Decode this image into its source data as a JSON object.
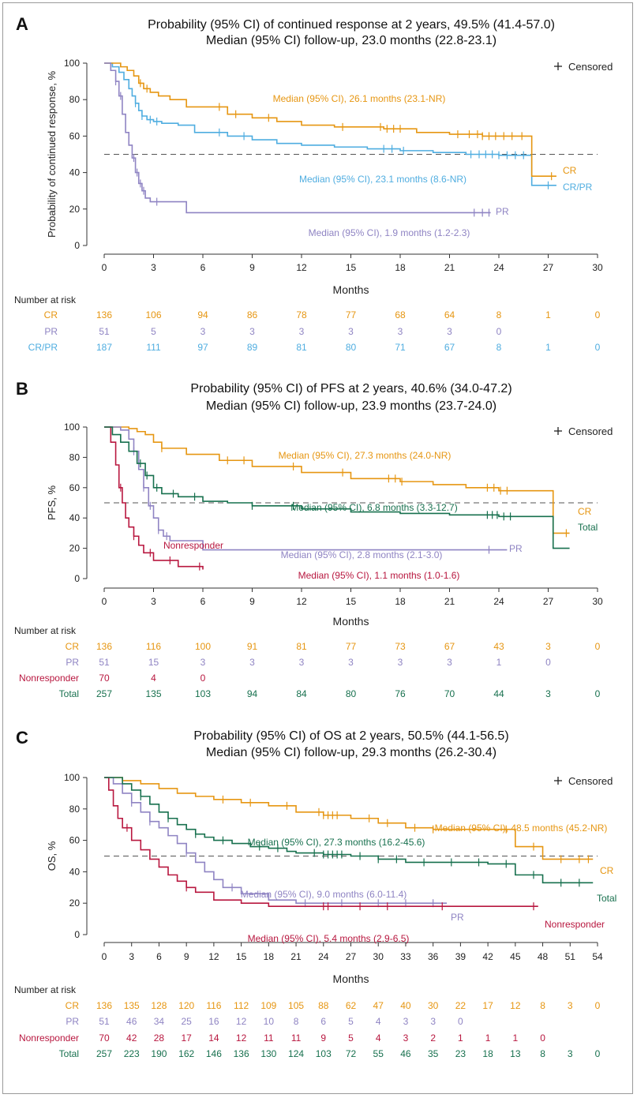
{
  "colors": {
    "cr": "#E69612",
    "pr": "#8F84C3",
    "crpr": "#4FADE0",
    "nonresponder": "#B8173F",
    "total": "#17704E",
    "axis": "#333333",
    "dash": "#555555"
  },
  "common": {
    "censored_label": "Censored",
    "nar_header": "Number at risk",
    "xlabel": "Months"
  },
  "chart_data": [
    {
      "panel": "A",
      "type": "line",
      "title_lines": [
        "Probability (95% CI) of continued response at 2 years, 49.5% (41.4-57.0)",
        "Median (95% CI) follow-up, 23.0 months (22.8-23.1)"
      ],
      "ylabel": "Probability of continued response, %",
      "xlim": [
        0,
        30
      ],
      "ylim": [
        0,
        100
      ],
      "xticks": [
        0,
        3,
        6,
        9,
        12,
        15,
        18,
        21,
        24,
        27,
        30
      ],
      "yticks": [
        0,
        20,
        40,
        60,
        80,
        100
      ],
      "median_line": 50,
      "series": [
        {
          "key": "crpr",
          "name": "CR/PR",
          "x": [
            0,
            0.5,
            0.9,
            1.2,
            1.5,
            1.7,
            1.9,
            2.1,
            2.3,
            2.6,
            3.0,
            3.5,
            4.5,
            5.5,
            7.5,
            9.0,
            10.5,
            12.0,
            14.0,
            16.0,
            18.0,
            20.0,
            22.0,
            24.0,
            26.0,
            27.5
          ],
          "y": [
            100,
            98,
            95,
            91,
            86,
            82,
            78,
            74,
            71,
            69,
            68,
            67,
            66,
            62,
            60,
            58,
            56,
            55,
            54,
            53,
            52,
            51,
            50,
            49.5,
            33,
            33
          ],
          "censor_x": [
            1.9,
            2.3,
            2.8,
            3.2,
            7.0,
            8.5,
            17.0,
            17.5,
            18.2,
            22.3,
            22.8,
            23.2,
            23.6,
            24.0,
            24.5,
            25.0,
            25.5,
            27.0
          ],
          "label": "CR/PR",
          "median_label": "Median (95% CI), 23.1 months (8.6-NR)"
        },
        {
          "key": "cr",
          "name": "CR",
          "x": [
            0,
            1.0,
            1.4,
            1.8,
            2.1,
            2.4,
            2.8,
            3.3,
            4.0,
            5.0,
            7.5,
            9.0,
            10.5,
            12.0,
            14.0,
            17.0,
            19.0,
            21.0,
            23.0,
            26.0,
            27.5
          ],
          "y": [
            100,
            98,
            96,
            93,
            89,
            86,
            84,
            82,
            80,
            76,
            72,
            70,
            68,
            66,
            65,
            64,
            62,
            61,
            60,
            38,
            38
          ],
          "censor_x": [
            2.2,
            2.6,
            7.0,
            8.0,
            10.0,
            14.5,
            16.8,
            17.2,
            17.6,
            18.0,
            21.5,
            22.2,
            22.7,
            23.0,
            23.4,
            23.8,
            24.3,
            24.8,
            25.4,
            27.2
          ],
          "label": "CR",
          "median_label": "Median (95% CI), 26.1 months (23.1-NR)"
        },
        {
          "key": "pr",
          "name": "PR",
          "x": [
            0,
            0.4,
            0.7,
            0.9,
            1.1,
            1.3,
            1.5,
            1.7,
            1.9,
            2.1,
            2.3,
            2.5,
            2.8,
            5.0,
            23.5
          ],
          "y": [
            100,
            96,
            90,
            82,
            72,
            62,
            55,
            48,
            40,
            34,
            30,
            26,
            24,
            18,
            18
          ],
          "censor_x": [
            0.7,
            1.0,
            1.8,
            2.0,
            2.2,
            2.4,
            3.2,
            22.5,
            23.0,
            23.4
          ],
          "label": "PR",
          "median_label": "Median (95% CI), 1.9 months (1.2-2.3)"
        }
      ],
      "risk_table": {
        "times": [
          0,
          3,
          6,
          9,
          12,
          15,
          18,
          21,
          24,
          27,
          30
        ],
        "rows": [
          {
            "key": "cr",
            "label": "CR",
            "values": [
              "136",
              "106",
              "94",
              "86",
              "78",
              "77",
              "68",
              "64",
              "8",
              "1",
              "0"
            ]
          },
          {
            "key": "pr",
            "label": "PR",
            "values": [
              "51",
              "5",
              "3",
              "3",
              "3",
              "3",
              "3",
              "3",
              "0",
              "",
              ""
            ]
          },
          {
            "key": "crpr",
            "label": "CR/PR",
            "values": [
              "187",
              "111",
              "97",
              "89",
              "81",
              "80",
              "71",
              "67",
              "8",
              "1",
              "0"
            ]
          }
        ]
      }
    },
    {
      "panel": "B",
      "type": "line",
      "title_lines": [
        "Probability (95% CI) of PFS at 2 years, 40.6% (34.0-47.2)",
        "Median (95% CI) follow-up, 23.9 months (23.7-24.0)"
      ],
      "ylabel": "PFS, %",
      "xlim": [
        0,
        30
      ],
      "ylim": [
        0,
        100
      ],
      "xticks": [
        0,
        3,
        6,
        9,
        12,
        15,
        18,
        21,
        24,
        27,
        30
      ],
      "yticks": [
        0,
        20,
        40,
        60,
        80,
        100
      ],
      "median_line": 50,
      "series": [
        {
          "key": "cr",
          "name": "CR",
          "x": [
            0,
            1.5,
            2.0,
            2.5,
            3.0,
            3.5,
            5.0,
            7.0,
            9.0,
            12.0,
            15.0,
            18.0,
            20.0,
            22.0,
            24.0,
            27.3,
            28.3
          ],
          "y": [
            100,
            99,
            97,
            95,
            90,
            86,
            82,
            78,
            74,
            70,
            66,
            64,
            62,
            60,
            58,
            30,
            30
          ],
          "censor_x": [
            3.5,
            7.5,
            8.5,
            11.5,
            14.5,
            17.3,
            17.7,
            18.1,
            23.3,
            23.7,
            24.1,
            24.5,
            28.1
          ],
          "label": "CR",
          "median_label": "Median (95% CI), 27.3 months (24.0-NR)"
        },
        {
          "key": "pr",
          "name": "PR",
          "x": [
            0,
            1.0,
            1.5,
            1.8,
            2.1,
            2.4,
            2.7,
            3.0,
            3.3,
            3.6,
            4.0,
            6.0,
            24.5
          ],
          "y": [
            100,
            98,
            92,
            84,
            72,
            60,
            48,
            40,
            32,
            28,
            25,
            19,
            19
          ],
          "censor_x": [
            1.8,
            2.4,
            2.8,
            3.3,
            3.8,
            23.4
          ],
          "label": "PR",
          "median_label": "Median (95% CI), 2.8 months (2.1-3.0)"
        },
        {
          "key": "nonresponder",
          "name": "Nonresponder",
          "x": [
            0,
            0.4,
            0.7,
            0.9,
            1.1,
            1.3,
            1.5,
            1.8,
            2.1,
            2.4,
            3.0,
            4.5,
            6.0
          ],
          "y": [
            100,
            90,
            75,
            60,
            50,
            40,
            34,
            28,
            22,
            17,
            12,
            8,
            6
          ],
          "censor_x": [
            1.0,
            1.8,
            2.8,
            4.0,
            5.8
          ],
          "label": "Nonresponder",
          "median_label": "Median (95% CI), 1.1 months (1.0-1.6)"
        },
        {
          "key": "total",
          "name": "Total",
          "x": [
            0,
            0.5,
            1.0,
            1.5,
            2.0,
            2.5,
            3.0,
            3.5,
            4.5,
            6.0,
            7.5,
            9.0,
            12.0,
            15.0,
            18.0,
            21.0,
            24.0,
            27.3,
            28.3
          ],
          "y": [
            100,
            95,
            90,
            84,
            76,
            68,
            60,
            56,
            54,
            51,
            50,
            48,
            46,
            44,
            43,
            42,
            41,
            20,
            20
          ],
          "censor_x": [
            2.2,
            2.6,
            3.2,
            4.2,
            5.5,
            9.0,
            11.5,
            23.3,
            23.6,
            23.9,
            24.3,
            24.7
          ],
          "label": "Total",
          "median_label": "Median (95% CI), 6.8 months (3.3-12.7)"
        }
      ],
      "risk_table": {
        "times": [
          0,
          3,
          6,
          9,
          12,
          15,
          18,
          21,
          24,
          27,
          30
        ],
        "rows": [
          {
            "key": "cr",
            "label": "CR",
            "values": [
              "136",
              "116",
              "100",
              "91",
              "81",
              "77",
              "73",
              "67",
              "43",
              "3",
              "0"
            ]
          },
          {
            "key": "pr",
            "label": "PR",
            "values": [
              "51",
              "15",
              "3",
              "3",
              "3",
              "3",
              "3",
              "3",
              "1",
              "0",
              ""
            ]
          },
          {
            "key": "nonresponder",
            "label": "Nonresponder",
            "values": [
              "70",
              "4",
              "0",
              "",
              "",
              "",
              "",
              "",
              "",
              "",
              ""
            ]
          },
          {
            "key": "total",
            "label": "Total",
            "values": [
              "257",
              "135",
              "103",
              "94",
              "84",
              "80",
              "76",
              "70",
              "44",
              "3",
              "0"
            ]
          }
        ]
      }
    },
    {
      "panel": "C",
      "type": "line",
      "title_lines": [
        "Probability (95% CI) of OS at 2 years, 50.5% (44.1-56.5)",
        "Median (95% CI) follow-up, 29.3 months (26.2-30.4)"
      ],
      "ylabel": "OS, %",
      "xlim": [
        0,
        54
      ],
      "ylim": [
        0,
        100
      ],
      "xticks": [
        0,
        3,
        6,
        9,
        12,
        15,
        18,
        21,
        24,
        27,
        30,
        33,
        36,
        39,
        42,
        45,
        48,
        51,
        54
      ],
      "yticks": [
        0,
        20,
        40,
        60,
        80,
        100
      ],
      "median_line": 50,
      "series": [
        {
          "key": "cr",
          "name": "CR",
          "x": [
            0,
            2,
            4,
            6,
            8,
            10,
            12,
            15,
            18,
            21,
            24,
            27,
            30,
            33,
            36,
            39,
            42,
            45,
            46,
            48,
            53.5
          ],
          "y": [
            100,
            98,
            96,
            93,
            90,
            88,
            86,
            84,
            82,
            78,
            76,
            74,
            71,
            68,
            67,
            67,
            67,
            56,
            56,
            48,
            48
          ],
          "censor_x": [
            13,
            16,
            20,
            23.5,
            24,
            24.5,
            25,
            25.5,
            29,
            31,
            34,
            36,
            44,
            47,
            50,
            52,
            53
          ],
          "label": "CR",
          "median_label": "Median (95% CI), 48.5 months (45.2-NR)"
        },
        {
          "key": "pr",
          "name": "PR",
          "x": [
            0,
            1,
            2,
            3,
            4,
            5,
            6,
            7,
            8,
            9,
            10,
            11,
            12,
            13,
            15,
            18,
            21,
            25,
            30,
            37.5
          ],
          "y": [
            100,
            96,
            90,
            84,
            78,
            72,
            68,
            63,
            58,
            52,
            46,
            40,
            35,
            30,
            26,
            22,
            20,
            20,
            20,
            20
          ],
          "censor_x": [
            3,
            5,
            9,
            14,
            22,
            26,
            30,
            33,
            36
          ],
          "label": "PR",
          "median_label": "Median (95% CI), 9.0 months (6.0-11.4)"
        },
        {
          "key": "nonresponder",
          "name": "Nonresponder",
          "x": [
            0,
            0.5,
            1,
            1.5,
            2,
            3,
            4,
            5,
            6,
            7,
            8,
            9,
            10,
            12,
            15,
            18,
            21,
            25,
            30,
            40,
            47.5
          ],
          "y": [
            100,
            92,
            82,
            74,
            68,
            60,
            54,
            48,
            43,
            38,
            34,
            30,
            27,
            22,
            20,
            18,
            18,
            18,
            18,
            18,
            18
          ],
          "censor_x": [
            2.5,
            9,
            24,
            24.5,
            28,
            31,
            37,
            47
          ],
          "label": "Nonresponder",
          "median_label": "Median (95% CI), 5.4 months (2.9-6.5)"
        },
        {
          "key": "total",
          "name": "Total",
          "x": [
            0,
            2,
            3,
            4,
            5,
            6,
            7,
            8,
            9,
            10,
            11,
            12,
            14,
            16,
            18,
            20,
            21,
            24,
            27,
            30,
            33,
            36,
            39,
            42,
            45,
            46,
            48,
            53.5
          ],
          "y": [
            100,
            96,
            92,
            88,
            83,
            78,
            74,
            70,
            67,
            64,
            62,
            60,
            58,
            56,
            55,
            53,
            52,
            51,
            50,
            48,
            46,
            46,
            46,
            45,
            38,
            38,
            33,
            33
          ],
          "censor_x": [
            4,
            7,
            10,
            13,
            17,
            19,
            23,
            24,
            24.5,
            25,
            25.5,
            26,
            28,
            30,
            32,
            35,
            38,
            41,
            44,
            47,
            50,
            52
          ],
          "label": "Total",
          "median_label": "Median (95% CI), 27.3 months (16.2-45.6)"
        }
      ],
      "risk_table": {
        "times": [
          0,
          3,
          6,
          9,
          12,
          15,
          18,
          21,
          24,
          27,
          30,
          33,
          36,
          39,
          42,
          45,
          48,
          51,
          54
        ],
        "rows": [
          {
            "key": "cr",
            "label": "CR",
            "values": [
              "136",
              "135",
              "128",
              "120",
              "116",
              "112",
              "109",
              "105",
              "88",
              "62",
              "47",
              "40",
              "30",
              "22",
              "17",
              "12",
              "8",
              "3",
              "0"
            ]
          },
          {
            "key": "pr",
            "label": "PR",
            "values": [
              "51",
              "46",
              "34",
              "25",
              "16",
              "12",
              "10",
              "8",
              "6",
              "5",
              "4",
              "3",
              "3",
              "0",
              "",
              "",
              "",
              "",
              ""
            ]
          },
          {
            "key": "nonresponder",
            "label": "Nonresponder",
            "values": [
              "70",
              "42",
              "28",
              "17",
              "14",
              "12",
              "11",
              "11",
              "9",
              "5",
              "4",
              "3",
              "2",
              "1",
              "1",
              "1",
              "0",
              "",
              ""
            ]
          },
          {
            "key": "total",
            "label": "Total",
            "values": [
              "257",
              "223",
              "190",
              "162",
              "146",
              "136",
              "130",
              "124",
              "103",
              "72",
              "55",
              "46",
              "35",
              "23",
              "18",
              "13",
              "8",
              "3",
              "0"
            ]
          }
        ]
      }
    }
  ]
}
